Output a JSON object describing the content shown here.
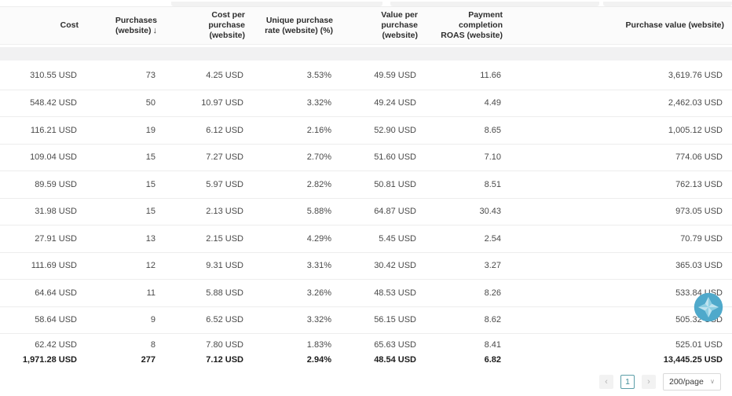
{
  "header": {
    "columns": [
      {
        "label": "Cost"
      },
      {
        "label": "Purchases (website)",
        "sort_icon": "↓"
      },
      {
        "label": "Cost per purchase (website)"
      },
      {
        "label": "Unique purchase rate (website) (%)"
      },
      {
        "label": "Value per purchase (website)"
      },
      {
        "label": "Payment completion ROAS (website)"
      },
      {
        "label": "Purchase value (website)"
      }
    ]
  },
  "table": {
    "rows": [
      [
        "310.55 USD",
        "73",
        "4.25 USD",
        "3.53%",
        "49.59 USD",
        "11.66",
        "3,619.76 USD"
      ],
      [
        "548.42 USD",
        "50",
        "10.97 USD",
        "3.32%",
        "49.24 USD",
        "4.49",
        "2,462.03 USD"
      ],
      [
        "116.21 USD",
        "19",
        "6.12 USD",
        "2.16%",
        "52.90 USD",
        "8.65",
        "1,005.12 USD"
      ],
      [
        "109.04 USD",
        "15",
        "7.27 USD",
        "2.70%",
        "51.60 USD",
        "7.10",
        "774.06 USD"
      ],
      [
        "89.59 USD",
        "15",
        "5.97 USD",
        "2.82%",
        "50.81 USD",
        "8.51",
        "762.13 USD"
      ],
      [
        "31.98 USD",
        "15",
        "2.13 USD",
        "5.88%",
        "64.87 USD",
        "30.43",
        "973.05 USD"
      ],
      [
        "27.91 USD",
        "13",
        "2.15 USD",
        "4.29%",
        "5.45 USD",
        "2.54",
        "70.79 USD"
      ],
      [
        "111.69 USD",
        "12",
        "9.31 USD",
        "3.31%",
        "30.42 USD",
        "3.27",
        "365.03 USD"
      ],
      [
        "64.64 USD",
        "11",
        "5.88 USD",
        "3.26%",
        "48.53 USD",
        "8.26",
        "533.84 USD"
      ],
      [
        "58.64 USD",
        "9",
        "6.52 USD",
        "3.32%",
        "56.15 USD",
        "8.62",
        "505.32 USD"
      ],
      [
        "62.42 USD",
        "8",
        "7.80 USD",
        "1.83%",
        "65.63 USD",
        "8.41",
        "525.01 USD"
      ]
    ],
    "total_row": [
      "1,971.28 USD",
      "277",
      "7.12 USD",
      "2.94%",
      "48.54 USD",
      "6.82",
      "13,445.25 USD"
    ]
  },
  "pagination": {
    "prev_icon": "‹",
    "current_page": "1",
    "next_icon": "›",
    "page_size_value": "200/page",
    "dropdown_icon": "∨"
  },
  "colors": {
    "accent_teal": "#5b9ea8",
    "header_text": "#2d2d2d",
    "row_text": "#4a4a4a",
    "watermark_blue": "#4fa9cb"
  }
}
